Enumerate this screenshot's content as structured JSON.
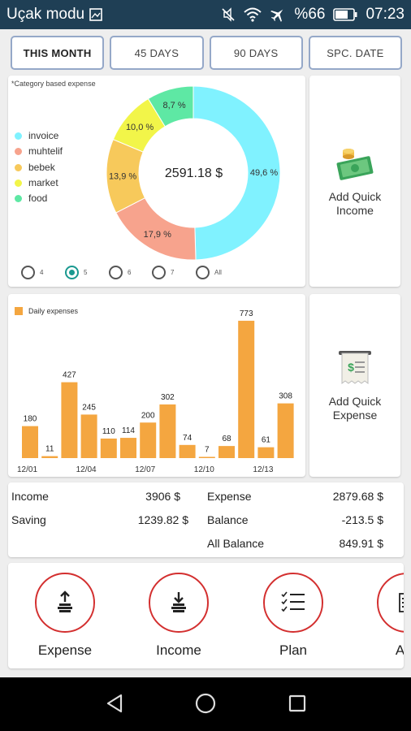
{
  "statusbar": {
    "left_text": "Uçak modu",
    "battery": "%66",
    "time": "07:23"
  },
  "tabs": [
    {
      "label": "THIS MONTH",
      "active": true
    },
    {
      "label": "45 DAYS",
      "active": false
    },
    {
      "label": "90 DAYS",
      "active": false
    },
    {
      "label": "SPC. DATE",
      "active": false
    }
  ],
  "donut": {
    "caption": "*Category based expense",
    "center_value": "2591.18 $",
    "legend": [
      {
        "name": "invoice",
        "color": "#80f2ff"
      },
      {
        "name": "muhtelif",
        "color": "#f7a38d"
      },
      {
        "name": "bebek",
        "color": "#f7c95b"
      },
      {
        "name": "market",
        "color": "#f2f549"
      },
      {
        "name": "food",
        "color": "#5ee8a4"
      }
    ],
    "slices": [
      {
        "label": "49,6 %",
        "value": 49.6,
        "color": "#80f2ff"
      },
      {
        "label": "17,9 %",
        "value": 17.9,
        "color": "#f7a38d"
      },
      {
        "label": "13,9 %",
        "value": 13.9,
        "color": "#f7c95b"
      },
      {
        "label": "10,0 %",
        "value": 10.0,
        "color": "#f2f549"
      },
      {
        "label": "8,7 %",
        "value": 8.7,
        "color": "#5ee8a4"
      }
    ],
    "radios": [
      {
        "label": "4",
        "checked": false
      },
      {
        "label": "5",
        "checked": true
      },
      {
        "label": "6",
        "checked": false
      },
      {
        "label": "7",
        "checked": false
      },
      {
        "label": "All",
        "checked": false
      }
    ]
  },
  "quick_income": {
    "label": "Add Quick Income",
    "icon": "money-coins-icon"
  },
  "quick_expense": {
    "label": "Add Quick Expense",
    "icon": "receipt-icon"
  },
  "chart_data": {
    "type": "bar",
    "legend": "Daily expenses",
    "bar_color": "#f4a640",
    "values": [
      180,
      11,
      427,
      245,
      110,
      114,
      200,
      302,
      74,
      7,
      68,
      773,
      61,
      308
    ],
    "tick_labels": [
      "12/01",
      "12/04",
      "12/07",
      "12/10",
      "12/13"
    ],
    "tick_positions": [
      0,
      3,
      6,
      9,
      12
    ],
    "ylim": [
      0,
      800
    ]
  },
  "summary": {
    "income_label": "Income",
    "income_value": "3906 $",
    "saving_label": "Saving",
    "saving_value": "1239.82 $",
    "expense_label": "Expense",
    "expense_value": "2879.68 $",
    "balance_label": "Balance",
    "balance_value": "-213.5 $",
    "all_balance_label": "All Balance",
    "all_balance_value": "849.91 $"
  },
  "actions": [
    {
      "label": "Expense",
      "icon": "expense-upload-icon"
    },
    {
      "label": "Income",
      "icon": "income-download-icon"
    },
    {
      "label": "Plan",
      "icon": "checklist-icon"
    },
    {
      "label": "Acc",
      "icon": "account-icon"
    }
  ]
}
